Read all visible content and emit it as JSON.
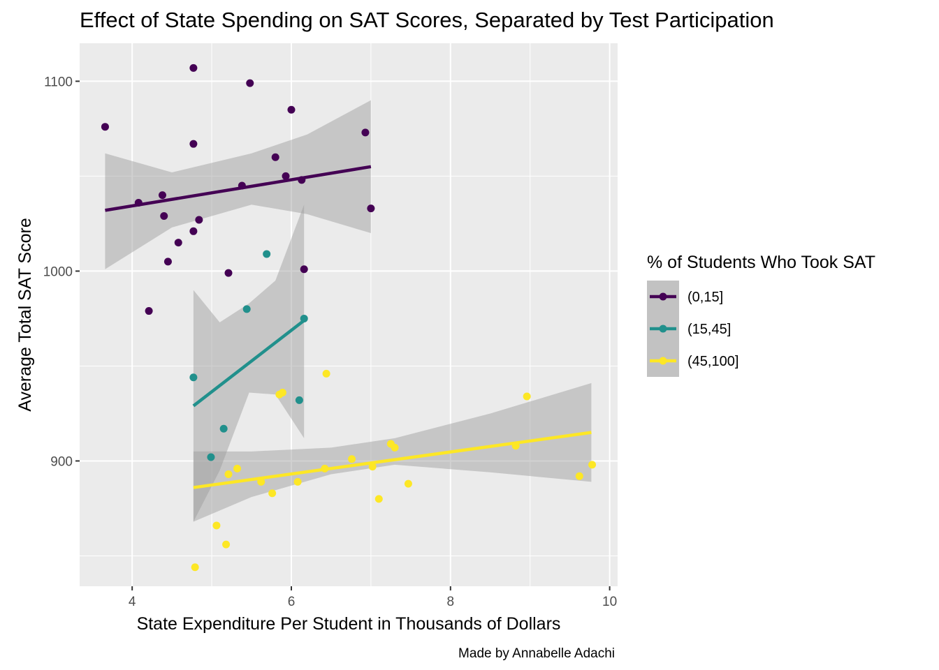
{
  "chart_data": {
    "type": "scatter",
    "title": "Effect of State Spending on SAT Scores, Separated by Test Participation",
    "xlabel": "State Expenditure Per Student in Thousands of Dollars",
    "ylabel": "Average Total SAT Score",
    "caption": "Made by Annabelle Adachi",
    "xlim": [
      3.34,
      10.1
    ],
    "ylim": [
      834,
      1120
    ],
    "x_ticks": [
      4,
      6,
      8,
      10
    ],
    "y_ticks": [
      900,
      1000,
      1100
    ],
    "grid": true,
    "legend": {
      "title": "% of Students Who Took SAT",
      "position": "right"
    },
    "series": [
      {
        "name": "(0,15]",
        "color": "#440154",
        "points": [
          [
            3.66,
            1076
          ],
          [
            4.08,
            1036
          ],
          [
            4.21,
            979
          ],
          [
            4.38,
            1040
          ],
          [
            4.4,
            1029
          ],
          [
            4.45,
            1005
          ],
          [
            4.58,
            1015
          ],
          [
            4.77,
            1107
          ],
          [
            4.77,
            1067
          ],
          [
            4.77,
            1021
          ],
          [
            4.84,
            1027
          ],
          [
            5.21,
            999
          ],
          [
            5.38,
            1045
          ],
          [
            5.48,
            1099
          ],
          [
            5.8,
            1060
          ],
          [
            5.93,
            1050
          ],
          [
            6.0,
            1085
          ],
          [
            6.13,
            1048
          ],
          [
            6.16,
            1001
          ],
          [
            6.93,
            1073
          ],
          [
            7.0,
            1033
          ]
        ],
        "trend": {
          "x": [
            3.66,
            7.0
          ],
          "y": [
            1032,
            1055
          ],
          "ci_x": [
            3.66,
            4.5,
            5.5,
            6.2,
            7.0
          ],
          "ci_lo": [
            1001,
            1023,
            1035,
            1030,
            1020
          ],
          "ci_hi": [
            1062,
            1052,
            1062,
            1072,
            1090
          ]
        }
      },
      {
        "name": "(15,45]",
        "color": "#21908C",
        "points": [
          [
            4.77,
            944
          ],
          [
            4.99,
            902
          ],
          [
            5.15,
            917
          ],
          [
            5.44,
            980
          ],
          [
            5.69,
            1009
          ],
          [
            6.1,
            932
          ],
          [
            6.16,
            975
          ]
        ],
        "trend": {
          "x": [
            4.77,
            6.16
          ],
          "y": [
            929,
            974
          ],
          "ci_x": [
            4.77,
            5.1,
            5.47,
            5.8,
            6.16
          ],
          "ci_lo": [
            868,
            895,
            936,
            935,
            912
          ],
          "ci_hi": [
            990,
            973,
            983,
            995,
            1035
          ]
        }
      },
      {
        "name": "(45,100]",
        "color": "#FDE725",
        "points": [
          [
            4.79,
            844
          ],
          [
            5.06,
            866
          ],
          [
            5.18,
            856
          ],
          [
            5.21,
            893
          ],
          [
            5.32,
            896
          ],
          [
            5.62,
            889
          ],
          [
            5.76,
            883
          ],
          [
            5.85,
            935
          ],
          [
            5.89,
            936
          ],
          [
            6.08,
            889
          ],
          [
            6.42,
            896
          ],
          [
            6.44,
            946
          ],
          [
            6.76,
            901
          ],
          [
            7.02,
            897
          ],
          [
            7.1,
            880
          ],
          [
            7.25,
            909
          ],
          [
            7.3,
            907
          ],
          [
            7.47,
            888
          ],
          [
            8.82,
            908
          ],
          [
            8.96,
            934
          ],
          [
            9.62,
            892
          ],
          [
            9.78,
            898
          ]
        ],
        "trend": {
          "x": [
            4.77,
            9.77
          ],
          "y": [
            886,
            915
          ],
          "ci_x": [
            4.77,
            5.5,
            6.5,
            7.3,
            8.5,
            9.77
          ],
          "ci_lo": [
            868,
            881,
            893,
            898,
            894,
            889
          ],
          "ci_hi": [
            905,
            905,
            907,
            912,
            925,
            941
          ]
        }
      }
    ]
  }
}
